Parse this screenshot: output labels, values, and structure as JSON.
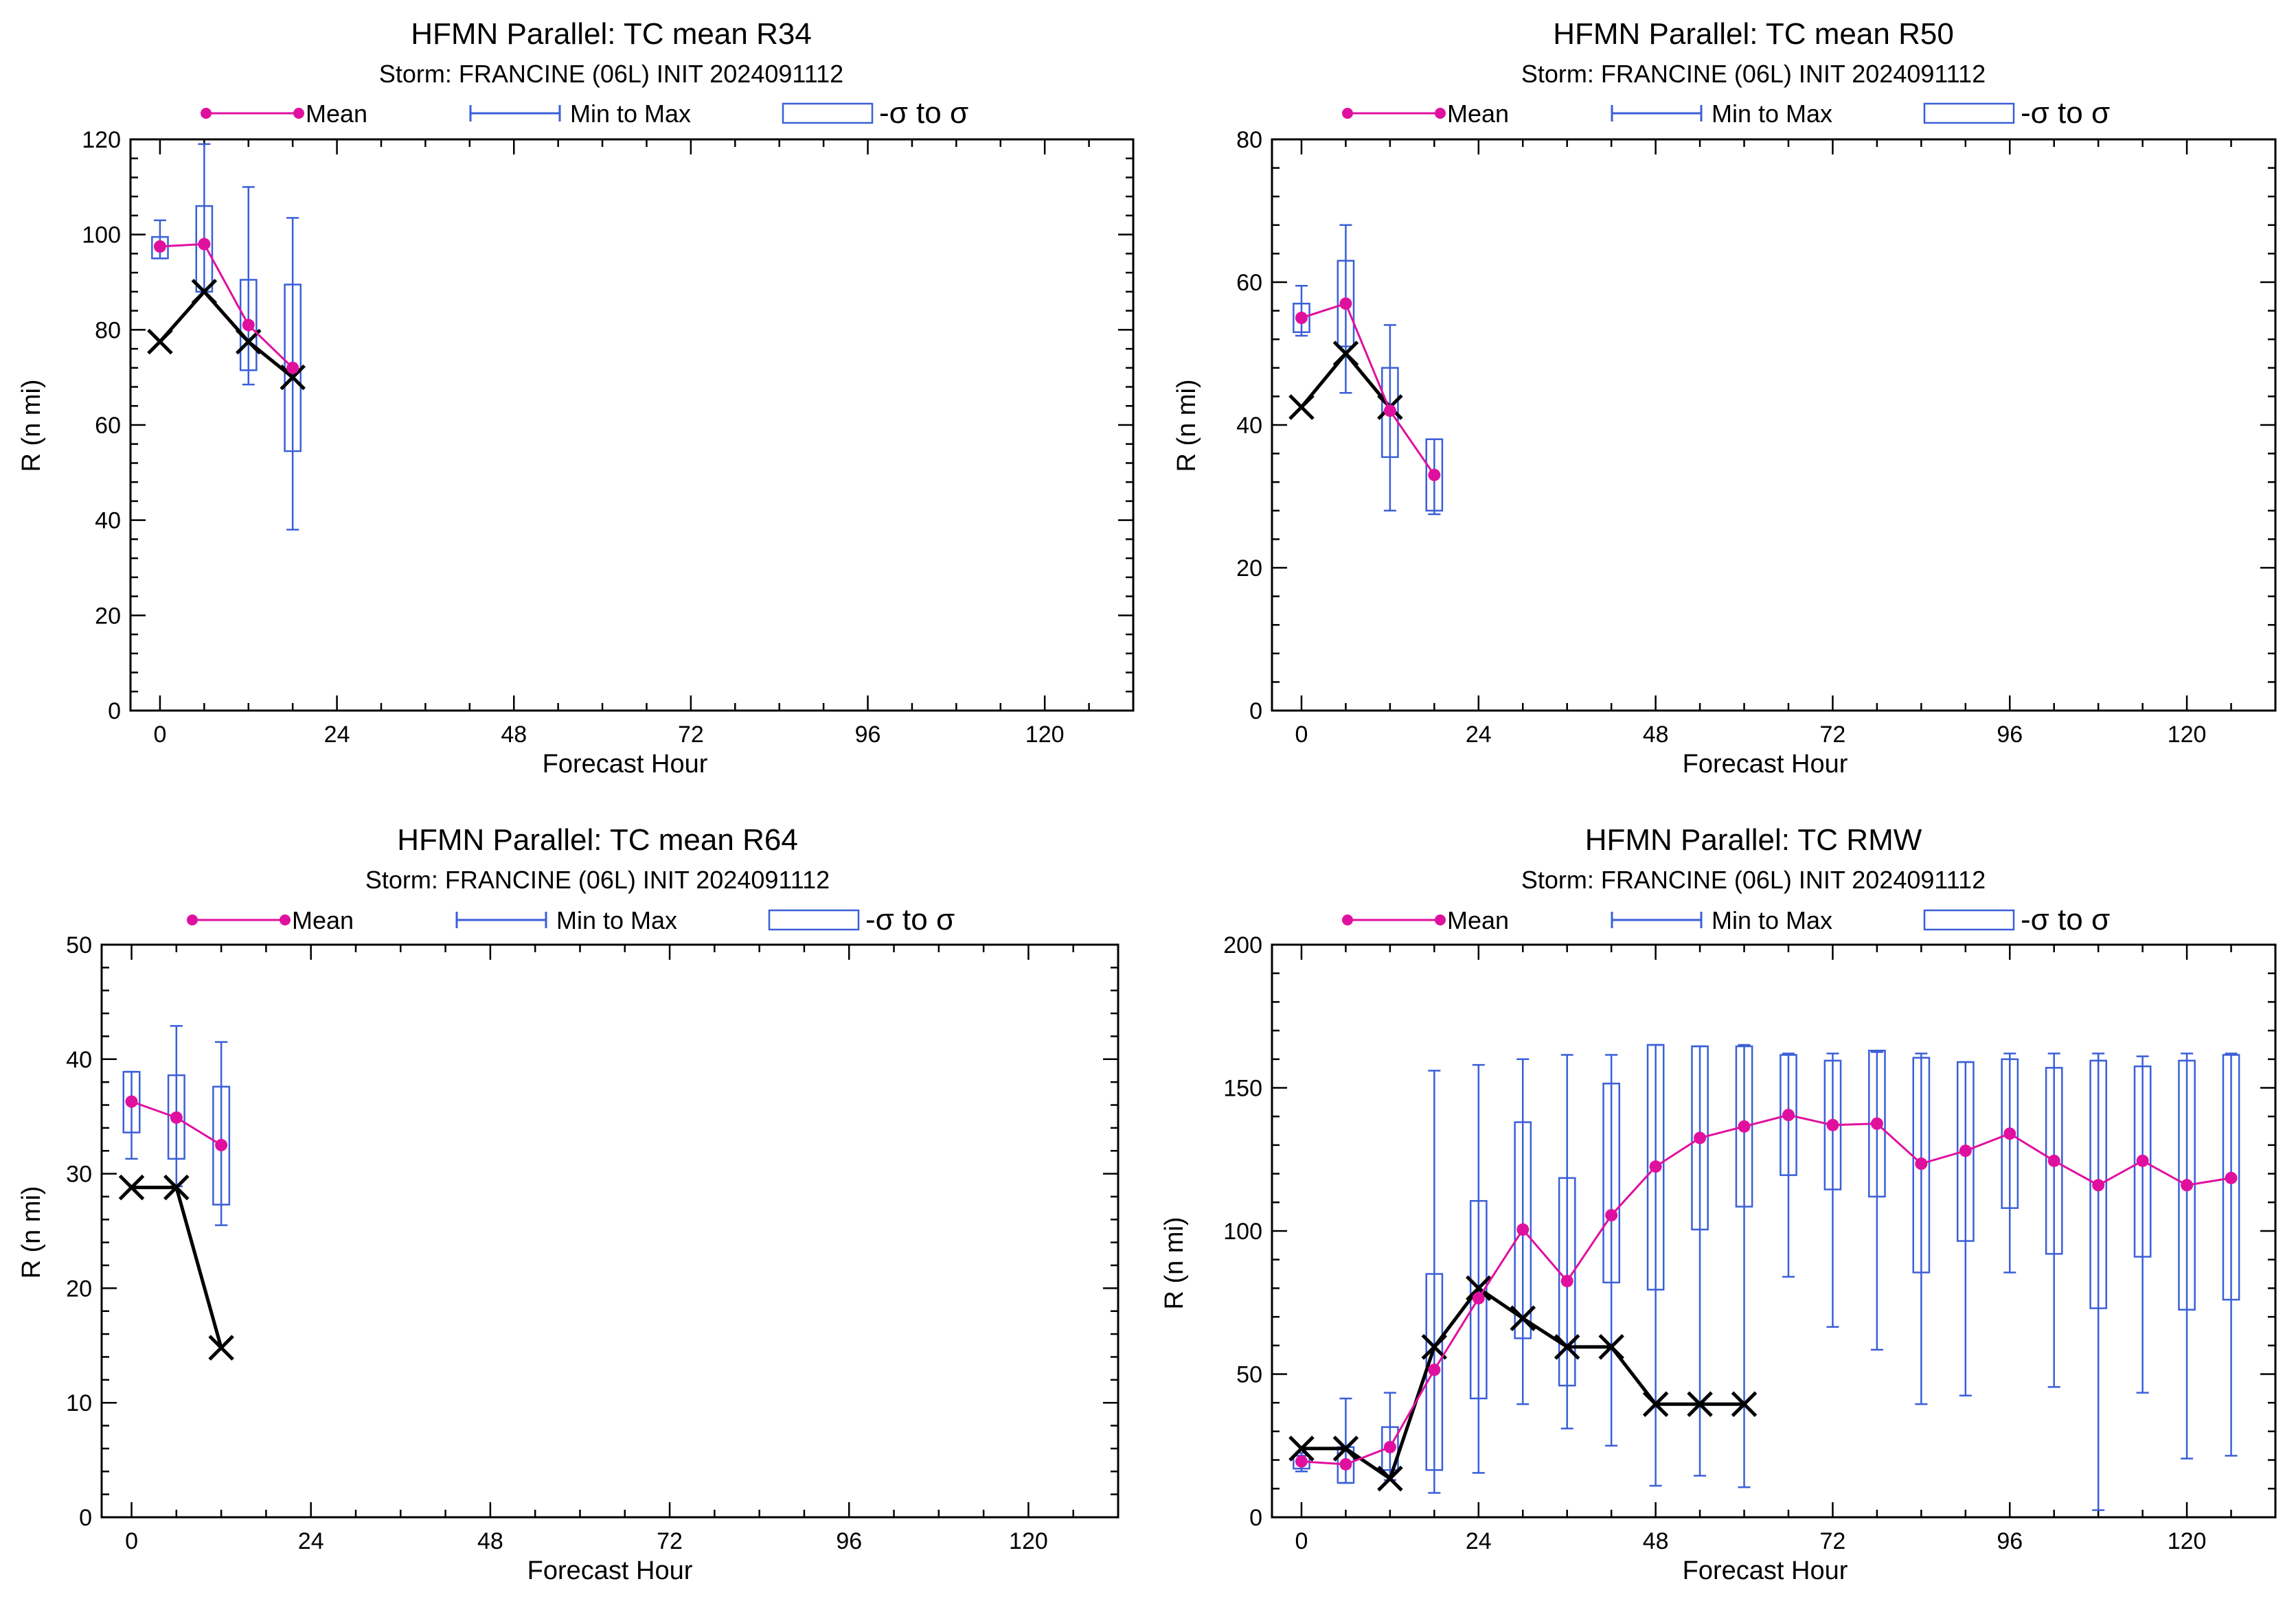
{
  "colors": {
    "mean": "#e0109f",
    "range": "#3a5fd8",
    "obs": "#000000",
    "axis": "#000000"
  },
  "legend": {
    "mean": "Mean",
    "range": "Min to Max",
    "sigma": "-σ to σ"
  },
  "chart_data": [
    {
      "type": "box",
      "title": "HFMN Parallel: TC mean R34",
      "subtitle": "Storm: FRANCINE (06L) INIT 2024091112",
      "xlabel": "Forecast Hour",
      "ylabel": "R (n mi)",
      "xticks": [
        0,
        24,
        48,
        72,
        96,
        120
      ],
      "xlim": [
        -4,
        132
      ],
      "yticks": [
        0,
        20,
        40,
        60,
        80,
        100,
        120
      ],
      "ylim": [
        0,
        120
      ],
      "hours": [
        0,
        6,
        12,
        18
      ],
      "mean": [
        97.5,
        98,
        81,
        72
      ],
      "min": [
        95,
        88,
        68.5,
        38
      ],
      "max": [
        103,
        119,
        110,
        103.5
      ],
      "sigma_low": [
        95,
        88,
        71.5,
        54.5
      ],
      "sigma_high": [
        99.5,
        106,
        90.5,
        89.5
      ],
      "obs_hours": [
        0,
        6,
        12,
        18
      ],
      "obs": [
        77.5,
        88,
        77.5,
        70
      ]
    },
    {
      "type": "box",
      "title": "HFMN Parallel: TC mean R50",
      "subtitle": "Storm: FRANCINE (06L) INIT 2024091112",
      "xlabel": "Forecast Hour",
      "ylabel": "R (n mi)",
      "xticks": [
        0,
        24,
        48,
        72,
        96,
        120
      ],
      "xlim": [
        -4,
        132
      ],
      "yticks": [
        0,
        20,
        40,
        60,
        80
      ],
      "ylim": [
        0,
        80
      ],
      "hours": [
        0,
        6,
        12,
        18
      ],
      "mean": [
        55,
        57,
        42,
        33
      ],
      "min": [
        52.5,
        44.5,
        28,
        27.5
      ],
      "max": [
        59.5,
        68,
        54,
        38
      ],
      "sigma_low": [
        53,
        51,
        35.5,
        28
      ],
      "sigma_high": [
        57,
        63,
        48,
        38
      ],
      "obs_hours": [
        0,
        6,
        12
      ],
      "obs": [
        42.5,
        50,
        42.5
      ]
    },
    {
      "type": "box",
      "title": "HFMN Parallel: TC mean R64",
      "subtitle": "Storm: FRANCINE (06L) INIT 2024091112",
      "xlabel": "Forecast Hour",
      "ylabel": "R (n mi)",
      "xticks": [
        0,
        24,
        48,
        72,
        96,
        120
      ],
      "xlim": [
        -4,
        132
      ],
      "yticks": [
        0,
        10,
        20,
        30,
        40,
        50
      ],
      "ylim": [
        0,
        50
      ],
      "hours": [
        0,
        6,
        12
      ],
      "mean": [
        36.3,
        34.9,
        32.5
      ],
      "min": [
        31.3,
        28.9,
        25.5
      ],
      "max": [
        38.9,
        42.9,
        41.5
      ],
      "sigma_low": [
        33.6,
        31.3,
        27.3
      ],
      "sigma_high": [
        38.9,
        38.6,
        37.6
      ],
      "obs_hours": [
        0,
        6,
        12
      ],
      "obs": [
        28.8,
        28.8,
        14.8
      ]
    },
    {
      "type": "box",
      "title": "HFMN Parallel: TC RMW",
      "subtitle": "Storm: FRANCINE (06L) INIT 2024091112",
      "xlabel": "Forecast Hour",
      "ylabel": "R (n mi)",
      "xticks": [
        0,
        24,
        48,
        72,
        96,
        120
      ],
      "xlim": [
        -4,
        132
      ],
      "yticks": [
        0,
        50,
        100,
        150,
        200
      ],
      "ylim": [
        0,
        200
      ],
      "hours": [
        0,
        6,
        12,
        18,
        24,
        30,
        36,
        42,
        48,
        54,
        60,
        66,
        72,
        78,
        84,
        90,
        96,
        102,
        108,
        114,
        120,
        126
      ],
      "mean": [
        19.5,
        18.5,
        24.5,
        51.5,
        76.5,
        100.5,
        82.5,
        105.5,
        122.5,
        132.5,
        136.5,
        140.5,
        137,
        137.5,
        123.5,
        128,
        134,
        124.5,
        116,
        124.5,
        116,
        118.5
      ],
      "min": [
        16,
        12,
        13,
        8.5,
        15.5,
        39.5,
        31,
        25,
        11,
        14.5,
        10.5,
        84,
        66.5,
        58.5,
        39.5,
        42.5,
        85.5,
        45.5,
        2.5,
        43.5,
        20.5,
        21.5
      ],
      "max": [
        22.5,
        41.5,
        43.5,
        156,
        158,
        160,
        161.5,
        161.5,
        165,
        164.5,
        165,
        162,
        162,
        162.5,
        162,
        159,
        162,
        162,
        162,
        161,
        162,
        162
      ],
      "sigma_low": [
        17,
        12,
        16.5,
        16.5,
        41.5,
        62.5,
        46,
        82,
        79.5,
        100.5,
        108.5,
        119.5,
        114.5,
        112,
        85.5,
        96.5,
        108,
        92,
        73,
        91,
        72.5,
        76
      ],
      "sigma_high": [
        21.5,
        24.5,
        31.5,
        85,
        110.5,
        138,
        118.5,
        151.5,
        165,
        164.5,
        164.5,
        161.5,
        159.5,
        163,
        160.5,
        159,
        160,
        157,
        159.5,
        157.5,
        159.5,
        161.5
      ],
      "obs_hours": [
        0,
        6,
        12,
        18,
        24,
        30,
        36,
        42,
        48,
        54,
        60
      ],
      "obs": [
        24,
        24,
        13.5,
        59.5,
        80,
        69.5,
        59.5,
        59.5,
        39.5,
        39.5,
        39.5
      ]
    }
  ]
}
